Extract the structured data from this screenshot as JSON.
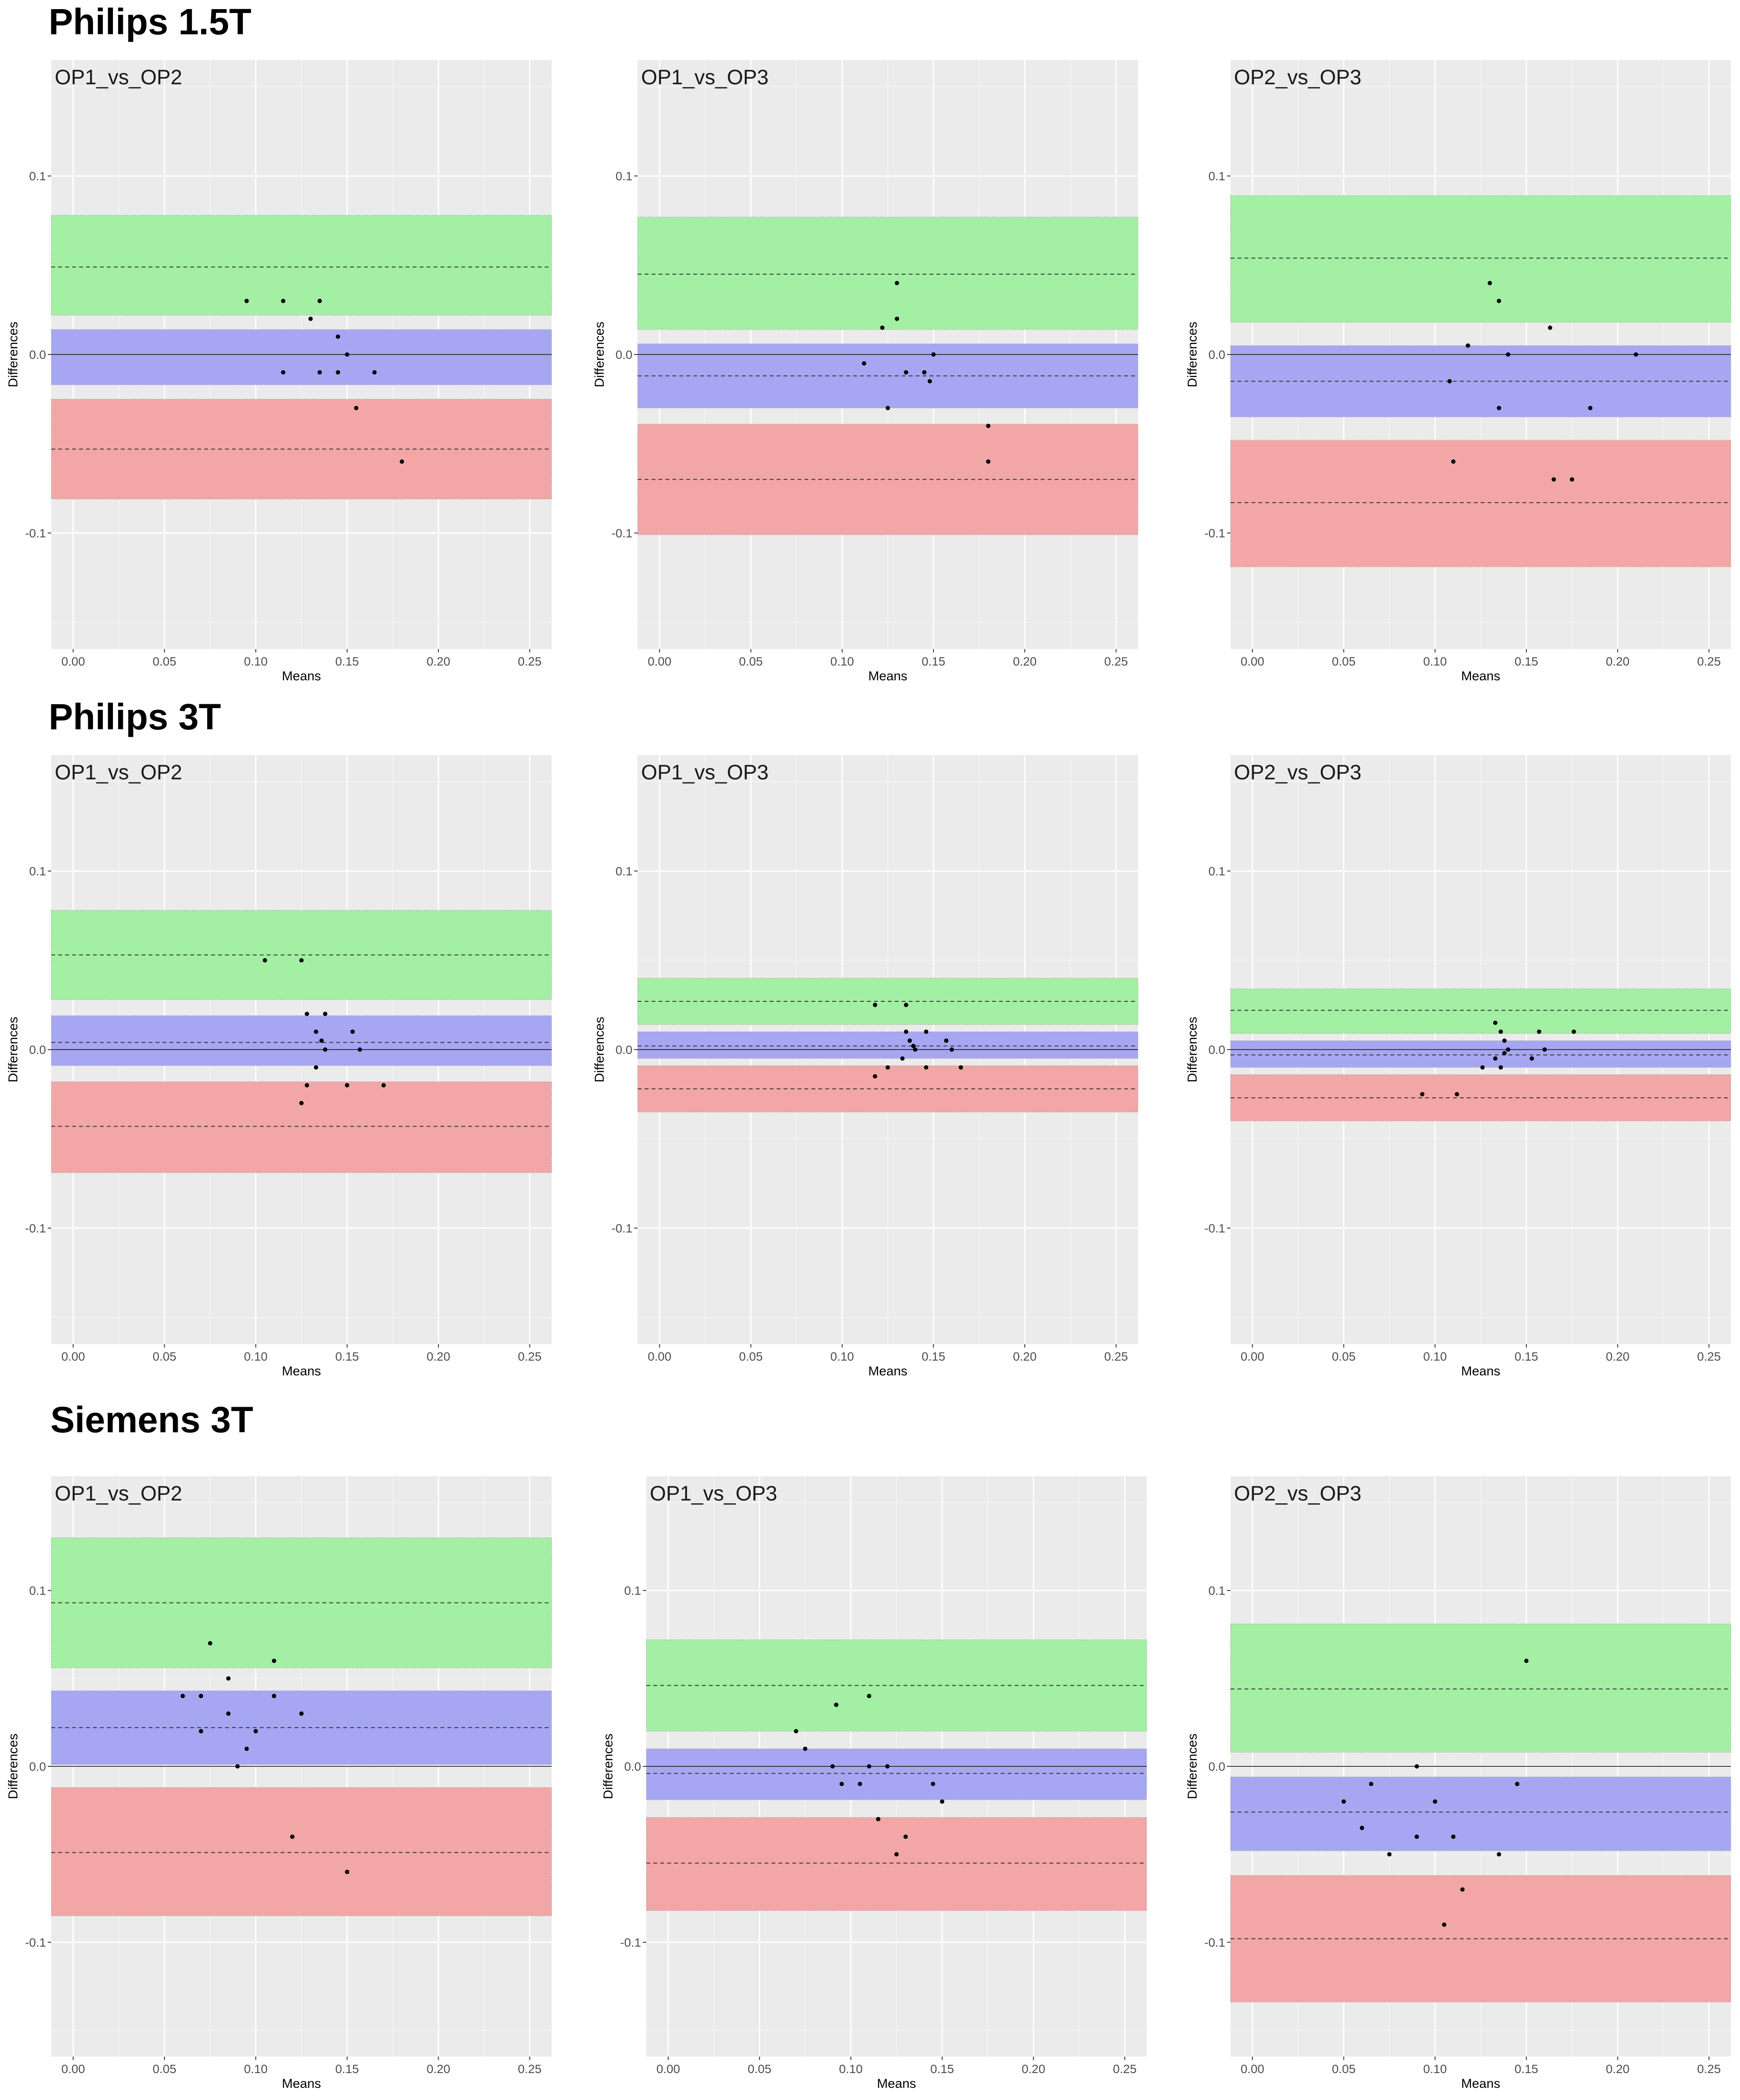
{
  "colors": {
    "panel_bg": "#ebebeb",
    "grid_major": "#ffffff",
    "upper_loa_band": "#a3efa3",
    "bias_band": "#a6a6f2",
    "lower_loa_band": "#f2a6a6",
    "point": "#000000"
  },
  "sections": [
    {
      "title": "Philips 1.5T"
    },
    {
      "title": "Philips 3T"
    },
    {
      "title": "Siemens 3T"
    }
  ],
  "chart_data": [
    {
      "type": "scatter",
      "section": "Philips 1.5T",
      "title": "OP1_vs_OP2",
      "xlabel": "Means",
      "ylabel": "Differences",
      "xlim": [
        -0.012,
        0.262
      ],
      "ylim": [
        -0.165,
        0.165
      ],
      "x_ticks": [
        "0.00",
        "0.05",
        "0.10",
        "0.15",
        "0.20",
        "0.25"
      ],
      "y_ticks": [
        "-0.1",
        "0.0",
        "0.1"
      ],
      "upper_loa": {
        "line": 0.049,
        "ci": [
          0.022,
          0.078
        ]
      },
      "bias": {
        "line": 0.0,
        "ci": [
          -0.017,
          0.014
        ]
      },
      "lower_loa": {
        "line": -0.053,
        "ci": [
          -0.081,
          -0.025
        ]
      },
      "zero_line": 0.0,
      "points": [
        [
          0.095,
          0.03
        ],
        [
          0.115,
          0.03
        ],
        [
          0.135,
          0.03
        ],
        [
          0.13,
          0.02
        ],
        [
          0.115,
          -0.01
        ],
        [
          0.135,
          -0.01
        ],
        [
          0.145,
          0.01
        ],
        [
          0.15,
          0.0
        ],
        [
          0.145,
          -0.01
        ],
        [
          0.165,
          -0.01
        ],
        [
          0.155,
          -0.03
        ],
        [
          0.18,
          -0.06
        ]
      ]
    },
    {
      "type": "scatter",
      "section": "Philips 1.5T",
      "title": "OP1_vs_OP3",
      "xlabel": "Means",
      "ylabel": "Differences",
      "xlim": [
        -0.012,
        0.262
      ],
      "ylim": [
        -0.165,
        0.165
      ],
      "x_ticks": [
        "0.00",
        "0.05",
        "0.10",
        "0.15",
        "0.20",
        "0.25"
      ],
      "y_ticks": [
        "-0.1",
        "0.0",
        "0.1"
      ],
      "upper_loa": {
        "line": 0.045,
        "ci": [
          0.014,
          0.077
        ]
      },
      "bias": {
        "line": -0.012,
        "ci": [
          -0.03,
          0.006
        ]
      },
      "lower_loa": {
        "line": -0.07,
        "ci": [
          -0.101,
          -0.039
        ]
      },
      "zero_line": 0.0,
      "points": [
        [
          0.13,
          0.04
        ],
        [
          0.13,
          0.02
        ],
        [
          0.122,
          0.015
        ],
        [
          0.112,
          -0.005
        ],
        [
          0.135,
          -0.01
        ],
        [
          0.145,
          -0.01
        ],
        [
          0.148,
          -0.015
        ],
        [
          0.15,
          0.0
        ],
        [
          0.125,
          -0.03
        ],
        [
          0.18,
          -0.04
        ],
        [
          0.18,
          -0.06
        ]
      ]
    },
    {
      "type": "scatter",
      "section": "Philips 1.5T",
      "title": "OP2_vs_OP3",
      "xlabel": "Means",
      "ylabel": "Differences",
      "xlim": [
        -0.012,
        0.262
      ],
      "ylim": [
        -0.165,
        0.165
      ],
      "x_ticks": [
        "0.00",
        "0.05",
        "0.10",
        "0.15",
        "0.20",
        "0.25"
      ],
      "y_ticks": [
        "-0.1",
        "0.0",
        "0.1"
      ],
      "upper_loa": {
        "line": 0.054,
        "ci": [
          0.018,
          0.089
        ]
      },
      "bias": {
        "line": -0.015,
        "ci": [
          -0.035,
          0.005
        ]
      },
      "lower_loa": {
        "line": -0.083,
        "ci": [
          -0.119,
          -0.048
        ]
      },
      "zero_line": 0.0,
      "points": [
        [
          0.13,
          0.04
        ],
        [
          0.135,
          0.03
        ],
        [
          0.163,
          0.015
        ],
        [
          0.118,
          0.005
        ],
        [
          0.14,
          0.0
        ],
        [
          0.21,
          0.0
        ],
        [
          0.108,
          -0.015
        ],
        [
          0.135,
          -0.03
        ],
        [
          0.185,
          -0.03
        ],
        [
          0.11,
          -0.06
        ],
        [
          0.165,
          -0.07
        ],
        [
          0.175,
          -0.07
        ]
      ]
    },
    {
      "type": "scatter",
      "section": "Philips 3T",
      "title": "OP1_vs_OP2",
      "xlabel": "Means",
      "ylabel": "Differences",
      "xlim": [
        -0.012,
        0.262
      ],
      "ylim": [
        -0.165,
        0.165
      ],
      "x_ticks": [
        "0.00",
        "0.05",
        "0.10",
        "0.15",
        "0.20",
        "0.25"
      ],
      "y_ticks": [
        "-0.1",
        "0.0",
        "0.1"
      ],
      "upper_loa": {
        "line": 0.053,
        "ci": [
          0.028,
          0.078
        ]
      },
      "bias": {
        "line": 0.004,
        "ci": [
          -0.009,
          0.019
        ]
      },
      "lower_loa": {
        "line": -0.043,
        "ci": [
          -0.069,
          -0.018
        ]
      },
      "zero_line": 0.0,
      "points": [
        [
          0.105,
          0.05
        ],
        [
          0.125,
          0.05
        ],
        [
          0.128,
          0.02
        ],
        [
          0.138,
          0.02
        ],
        [
          0.133,
          0.01
        ],
        [
          0.153,
          0.01
        ],
        [
          0.136,
          0.005
        ],
        [
          0.138,
          0.0
        ],
        [
          0.157,
          0.0
        ],
        [
          0.133,
          -0.01
        ],
        [
          0.128,
          -0.02
        ],
        [
          0.15,
          -0.02
        ],
        [
          0.17,
          -0.02
        ],
        [
          0.125,
          -0.03
        ]
      ]
    },
    {
      "type": "scatter",
      "section": "Philips 3T",
      "title": "OP1_vs_OP3",
      "xlabel": "Means",
      "ylabel": "Differences",
      "xlim": [
        -0.012,
        0.262
      ],
      "ylim": [
        -0.165,
        0.165
      ],
      "x_ticks": [
        "0.00",
        "0.05",
        "0.10",
        "0.15",
        "0.20",
        "0.25"
      ],
      "y_ticks": [
        "-0.1",
        "0.0",
        "0.1"
      ],
      "upper_loa": {
        "line": 0.027,
        "ci": [
          0.014,
          0.04
        ]
      },
      "bias": {
        "line": 0.002,
        "ci": [
          -0.005,
          0.01
        ]
      },
      "lower_loa": {
        "line": -0.022,
        "ci": [
          -0.035,
          -0.009
        ]
      },
      "zero_line": 0.0,
      "points": [
        [
          0.118,
          0.025
        ],
        [
          0.135,
          0.025
        ],
        [
          0.135,
          0.01
        ],
        [
          0.146,
          0.01
        ],
        [
          0.137,
          0.005
        ],
        [
          0.157,
          0.005
        ],
        [
          0.139,
          0.002
        ],
        [
          0.14,
          0.0
        ],
        [
          0.16,
          0.0
        ],
        [
          0.133,
          -0.005
        ],
        [
          0.125,
          -0.01
        ],
        [
          0.146,
          -0.01
        ],
        [
          0.165,
          -0.01
        ],
        [
          0.118,
          -0.015
        ]
      ]
    },
    {
      "type": "scatter",
      "section": "Philips 3T",
      "title": "OP2_vs_OP3",
      "xlabel": "Means",
      "ylabel": "Differences",
      "xlim": [
        -0.012,
        0.262
      ],
      "ylim": [
        -0.165,
        0.165
      ],
      "x_ticks": [
        "0.00",
        "0.05",
        "0.10",
        "0.15",
        "0.20",
        "0.25"
      ],
      "y_ticks": [
        "-0.1",
        "0.0",
        "0.1"
      ],
      "upper_loa": {
        "line": 0.022,
        "ci": [
          0.009,
          0.034
        ]
      },
      "bias": {
        "line": -0.003,
        "ci": [
          -0.01,
          0.005
        ]
      },
      "lower_loa": {
        "line": -0.027,
        "ci": [
          -0.04,
          -0.014
        ]
      },
      "zero_line": 0.0,
      "points": [
        [
          0.133,
          0.015
        ],
        [
          0.136,
          0.01
        ],
        [
          0.157,
          0.01
        ],
        [
          0.176,
          0.01
        ],
        [
          0.138,
          0.005
        ],
        [
          0.14,
          0.0
        ],
        [
          0.16,
          0.0
        ],
        [
          0.138,
          -0.002
        ],
        [
          0.133,
          -0.005
        ],
        [
          0.153,
          -0.005
        ],
        [
          0.126,
          -0.01
        ],
        [
          0.136,
          -0.01
        ],
        [
          0.093,
          -0.025
        ],
        [
          0.112,
          -0.025
        ]
      ]
    },
    {
      "type": "scatter",
      "section": "Siemens 3T",
      "title": "OP1_vs_OP2",
      "xlabel": "Means",
      "ylabel": "Differences",
      "xlim": [
        -0.012,
        0.262
      ],
      "ylim": [
        -0.165,
        0.165
      ],
      "x_ticks": [
        "0.00",
        "0.05",
        "0.10",
        "0.15",
        "0.20",
        "0.25"
      ],
      "y_ticks": [
        "-0.1",
        "0.0",
        "0.1"
      ],
      "upper_loa": {
        "line": 0.093,
        "ci": [
          0.056,
          0.13
        ]
      },
      "bias": {
        "line": 0.022,
        "ci": [
          0.001,
          0.043
        ]
      },
      "lower_loa": {
        "line": -0.049,
        "ci": [
          -0.085,
          -0.012
        ]
      },
      "zero_line": 0.0,
      "points": [
        [
          0.075,
          0.07
        ],
        [
          0.11,
          0.06
        ],
        [
          0.085,
          0.05
        ],
        [
          0.06,
          0.04
        ],
        [
          0.07,
          0.04
        ],
        [
          0.11,
          0.04
        ],
        [
          0.085,
          0.03
        ],
        [
          0.125,
          0.03
        ],
        [
          0.07,
          0.02
        ],
        [
          0.1,
          0.02
        ],
        [
          0.095,
          0.01
        ],
        [
          0.09,
          0.0
        ],
        [
          0.12,
          -0.04
        ],
        [
          0.15,
          -0.06
        ]
      ]
    },
    {
      "type": "scatter",
      "section": "Siemens 3T",
      "title": "OP1_vs_OP3",
      "xlabel": "Means",
      "ylabel": "Differences",
      "xlim": [
        -0.012,
        0.262
      ],
      "ylim": [
        -0.165,
        0.165
      ],
      "x_ticks": [
        "0.00",
        "0.05",
        "0.10",
        "0.15",
        "0.20",
        "0.25"
      ],
      "y_ticks": [
        "-0.1",
        "0.0",
        "0.1"
      ],
      "upper_loa": {
        "line": 0.046,
        "ci": [
          0.02,
          0.072
        ]
      },
      "bias": {
        "line": -0.004,
        "ci": [
          -0.019,
          0.01
        ]
      },
      "lower_loa": {
        "line": -0.055,
        "ci": [
          -0.082,
          -0.029
        ]
      },
      "zero_line": 0.0,
      "points": [
        [
          0.11,
          0.04
        ],
        [
          0.092,
          0.035
        ],
        [
          0.07,
          0.02
        ],
        [
          0.075,
          0.01
        ],
        [
          0.09,
          0.0
        ],
        [
          0.11,
          0.0
        ],
        [
          0.12,
          0.0
        ],
        [
          0.095,
          -0.01
        ],
        [
          0.105,
          -0.01
        ],
        [
          0.145,
          -0.01
        ],
        [
          0.15,
          -0.02
        ],
        [
          0.115,
          -0.03
        ],
        [
          0.13,
          -0.04
        ],
        [
          0.125,
          -0.05
        ]
      ]
    },
    {
      "type": "scatter",
      "section": "Siemens 3T",
      "title": "OP2_vs_OP3",
      "xlabel": "Means",
      "ylabel": "Differences",
      "xlim": [
        -0.012,
        0.262
      ],
      "ylim": [
        -0.165,
        0.165
      ],
      "x_ticks": [
        "0.00",
        "0.05",
        "0.10",
        "0.15",
        "0.20",
        "0.25"
      ],
      "y_ticks": [
        "-0.1",
        "0.0",
        "0.1"
      ],
      "upper_loa": {
        "line": 0.044,
        "ci": [
          0.008,
          0.081
        ]
      },
      "bias": {
        "line": -0.026,
        "ci": [
          -0.048,
          -0.006
        ]
      },
      "lower_loa": {
        "line": -0.098,
        "ci": [
          -0.134,
          -0.062
        ]
      },
      "zero_line": 0.0,
      "points": [
        [
          0.15,
          0.06
        ],
        [
          0.09,
          0.0
        ],
        [
          0.065,
          -0.01
        ],
        [
          0.145,
          -0.01
        ],
        [
          0.05,
          -0.02
        ],
        [
          0.1,
          -0.02
        ],
        [
          0.06,
          -0.035
        ],
        [
          0.09,
          -0.04
        ],
        [
          0.11,
          -0.04
        ],
        [
          0.075,
          -0.05
        ],
        [
          0.135,
          -0.05
        ],
        [
          0.115,
          -0.07
        ],
        [
          0.105,
          -0.09
        ]
      ]
    }
  ]
}
